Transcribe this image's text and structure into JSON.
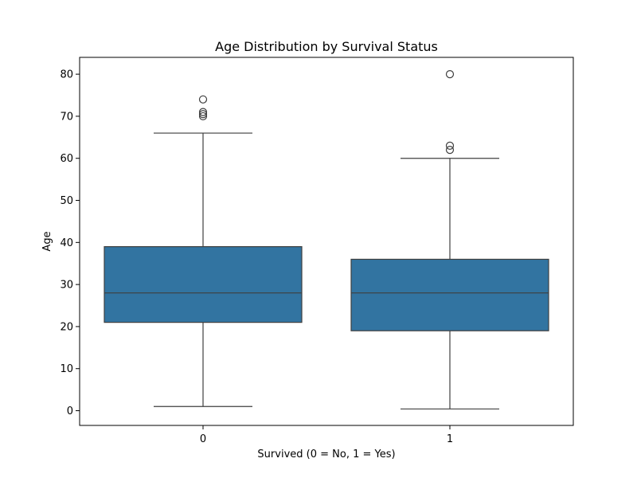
{
  "chart_data": {
    "type": "box",
    "title": "Age Distribution by Survival Status",
    "xlabel": "Survived (0 = No, 1 = Yes)",
    "ylabel": "Age",
    "ylim": [
      -3.5,
      84
    ],
    "yticks": [
      0,
      10,
      20,
      30,
      40,
      50,
      60,
      70,
      80
    ],
    "categories": [
      "0",
      "1"
    ],
    "colors": {
      "box_fill": "#3274a1",
      "line": "#3f3f3f",
      "axis": "#000000"
    },
    "grid": false,
    "boxes": [
      {
        "category": "0",
        "whisker_low": 1,
        "q1": 21,
        "median": 28,
        "q3": 39,
        "whisker_high": 66,
        "outliers": [
          70,
          70.5,
          71,
          74
        ]
      },
      {
        "category": "1",
        "whisker_low": 0.42,
        "q1": 19,
        "median": 28,
        "q3": 36,
        "whisker_high": 60,
        "outliers": [
          62,
          63,
          80
        ]
      }
    ]
  }
}
